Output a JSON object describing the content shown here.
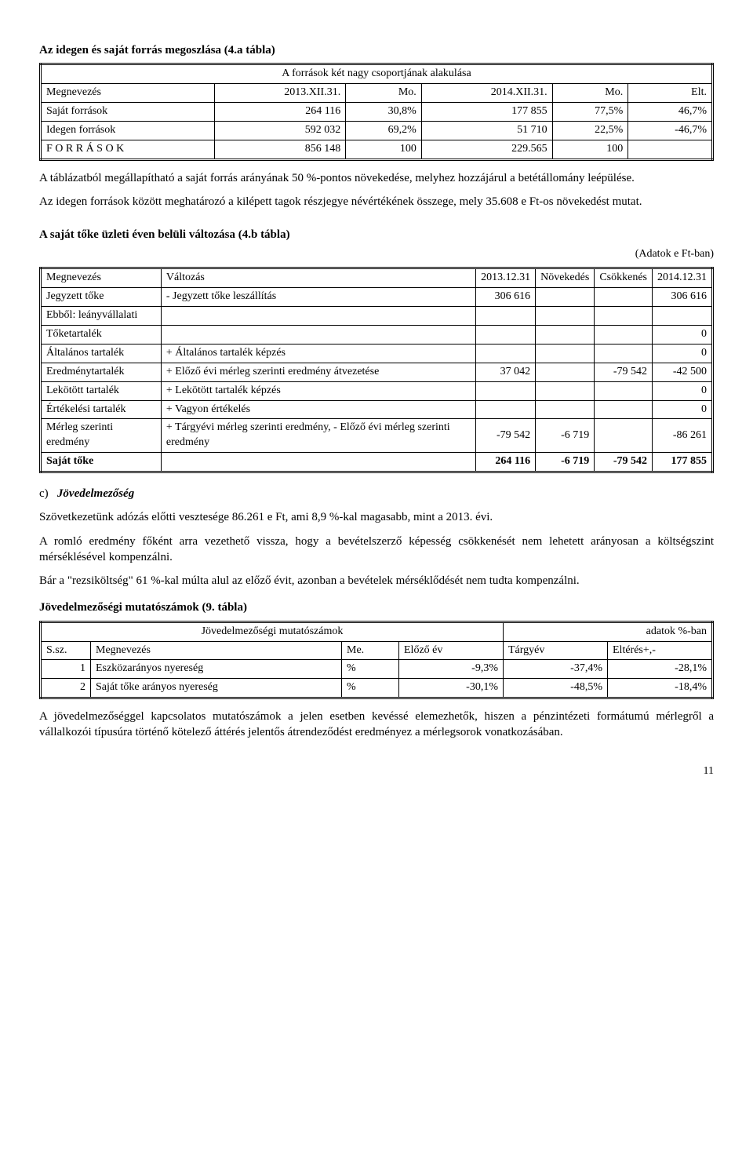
{
  "title1": "Az idegen és saját forrás megoszlása (4.a tábla)",
  "table4a": {
    "caption": "A források két nagy csoportjának alakulása",
    "headers": [
      "Megnevezés",
      "2013.XII.31.",
      "Mo.",
      "2014.XII.31.",
      "Mo.",
      "Elt."
    ],
    "rows": [
      [
        "Saját források",
        "264 116",
        "30,8%",
        "177 855",
        "77,5%",
        "46,7%"
      ],
      [
        "Idegen források",
        "592 032",
        "69,2%",
        "51 710",
        "22,5%",
        "-46,7%"
      ],
      [
        "F O R R Á S O K",
        "856 148",
        "100",
        "229.565",
        "100",
        ""
      ]
    ]
  },
  "para1": "A táblázatból megállapítható a saját forrás arányának 50 %-pontos növekedése, melyhez hozzájárul a betétállomány leépülése.",
  "para2": "Az idegen források között meghatározó a kilépett tagok részjegye névértékének összege, mely 35.608 e Ft-os növekedést mutat.",
  "title2": "A saját tőke üzleti éven belüli változása (4.b tábla)",
  "table4b": {
    "unit": "(Adatok e Ft-ban)",
    "headers": [
      "Megnevezés",
      "Változás",
      "2013.12.31",
      "Növekedés",
      "Csökkenés",
      "2014.12.31"
    ],
    "rows": [
      [
        "Jegyzett tőke",
        "- Jegyzett tőke leszállítás",
        "306 616",
        "",
        "",
        "306 616"
      ],
      [
        "Ebből: leányvállalati",
        "",
        "",
        "",
        "",
        ""
      ],
      [
        "Tőketartalék",
        "",
        "",
        "",
        "",
        "0"
      ],
      [
        "Általános tartalék",
        "+ Általános tartalék képzés",
        "",
        "",
        "",
        "0"
      ],
      [
        "Eredménytartalék",
        "+ Előző évi mérleg szerinti eredmény átvezetése",
        "37 042",
        "",
        "-79 542",
        "-42 500"
      ],
      [
        "Lekötött tartalék",
        "+ Lekötött tartalék képzés",
        "",
        "",
        "",
        "0"
      ],
      [
        "Értékelési tartalék",
        "+ Vagyon értékelés",
        "",
        "",
        "",
        "0"
      ],
      [
        "Mérleg szerinti eredmény",
        "+ Tárgyévi mérleg szerinti eredmény, - Előző évi mérleg szerinti eredmény",
        "-79 542",
        "-6 719",
        "",
        "-86 261"
      ],
      [
        "Saját tőke",
        "",
        "264 116",
        "-6 719",
        "-79 542",
        "177 855"
      ]
    ],
    "bold_rows": [
      8
    ]
  },
  "section_c_label": "c)",
  "section_c_title": "Jövedelmezőség",
  "para3": "Szövetkezetünk adózás előtti vesztesége 86.261 e Ft, ami 8,9 %-kal magasabb, mint a 2013. évi.",
  "para4": "A romló eredmény főként arra vezethető vissza, hogy a bevételszerző képesség csökkenését nem lehetett arányosan a költségszint mérséklésével kompenzálni.",
  "para5": "Bár a \"rezsiköltség\" 61 %-kal múlta alul az előző évit, azonban a bevételek mérséklődését nem tudta kompenzálni.",
  "title3": "Jövedelmezőségi mutatószámok (9. tábla)",
  "table9": {
    "caption_left": "Jövedelmezőségi mutatószámok",
    "caption_right": "adatok %-ban",
    "headers": [
      "S.sz.",
      "Megnevezés",
      "Me.",
      "Előző év",
      "Tárgyév",
      "Eltérés+,-"
    ],
    "rows": [
      [
        "1",
        "Eszközarányos nyereség",
        "%",
        "-9,3%",
        "-37,4%",
        "-28,1%"
      ],
      [
        "2",
        "Saját tőke arányos nyereség",
        "%",
        "-30,1%",
        "-48,5%",
        "-18,4%"
      ]
    ]
  },
  "para6": "A jövedelmezőséggel kapcsolatos mutatószámok a jelen esetben kevéssé elemezhetők, hiszen a pénzintézeti formátumú mérlegről a vállalkozói típusúra történő kötelező áttérés jelentős átrendeződést eredményez a mérlegsorok vonatkozásában.",
  "pagenum": "11"
}
